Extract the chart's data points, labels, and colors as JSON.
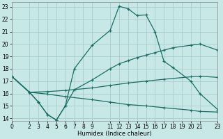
{
  "xlabel": "Humidex (Indice chaleur)",
  "bg_color": "#c8e8e8",
  "grid_color": "#a8cccc",
  "line_color": "#1a6e64",
  "xlim": [
    0,
    23
  ],
  "ylim": [
    13.8,
    23.4
  ],
  "xticks": [
    0,
    2,
    3,
    4,
    5,
    6,
    7,
    8,
    9,
    11,
    12,
    13,
    14,
    15,
    16,
    17,
    18,
    19,
    20,
    21,
    23
  ],
  "yticks": [
    14,
    15,
    16,
    17,
    18,
    19,
    20,
    21,
    22,
    23
  ],
  "line1_x": [
    0,
    2,
    3,
    4,
    5,
    6,
    7,
    9,
    11,
    12,
    13,
    14,
    15,
    16,
    17,
    18,
    20,
    21,
    23
  ],
  "line1_y": [
    17.4,
    16.1,
    15.3,
    14.3,
    13.85,
    15.0,
    18.0,
    19.9,
    21.1,
    23.05,
    22.85,
    22.3,
    22.35,
    21.0,
    18.6,
    18.1,
    17.0,
    16.0,
    14.7
  ],
  "line2_x": [
    0,
    2,
    3,
    4,
    5,
    6,
    7,
    9,
    11,
    12,
    13,
    14,
    15,
    16,
    17,
    18,
    20,
    21,
    23
  ],
  "line2_y": [
    17.4,
    16.1,
    15.3,
    14.3,
    13.85,
    15.0,
    16.3,
    17.1,
    18.0,
    18.4,
    18.65,
    18.9,
    19.1,
    19.3,
    19.5,
    19.7,
    19.9,
    20.0,
    19.5
  ],
  "line3_x": [
    0,
    2,
    4,
    6,
    9,
    11,
    13,
    15,
    17,
    20,
    21,
    23
  ],
  "line3_y": [
    17.4,
    16.1,
    16.15,
    16.25,
    16.45,
    16.65,
    16.85,
    17.0,
    17.15,
    17.35,
    17.4,
    17.3
  ],
  "line4_x": [
    0,
    2,
    4,
    6,
    9,
    11,
    13,
    15,
    17,
    20,
    21,
    23
  ],
  "line4_y": [
    17.4,
    16.1,
    15.95,
    15.75,
    15.5,
    15.3,
    15.1,
    15.0,
    14.85,
    14.65,
    14.55,
    14.5
  ]
}
